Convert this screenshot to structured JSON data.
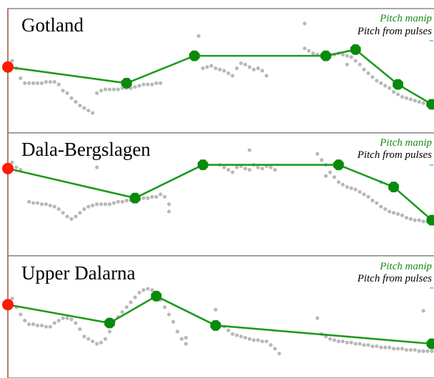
{
  "chart_data": [
    {
      "type": "line",
      "title": "Gotland",
      "legend": [
        "Pitch manip",
        "Pitch from pulses"
      ],
      "legend_placement": "top-right",
      "xlim": [
        0,
        100
      ],
      "ylim": [
        0,
        100
      ],
      "series": [
        {
          "name": "Pitch manip",
          "color": "#1e9a1e",
          "x": [
            0,
            28,
            44,
            75,
            82,
            92,
            100
          ],
          "y": [
            53,
            40,
            62,
            62,
            67,
            39,
            23
          ]
        },
        {
          "name": "Pitch from pulses",
          "color": "#b8b8b8",
          "x": [
            1,
            2,
            3,
            4,
            5,
            6,
            7,
            8,
            9,
            10,
            11,
            12,
            13,
            14,
            15,
            16,
            17,
            18,
            19,
            20,
            21,
            22,
            23,
            24,
            25,
            26,
            27,
            28,
            29,
            30,
            31,
            32,
            33,
            34,
            35,
            36,
            46,
            47,
            48,
            49,
            50,
            51,
            52,
            53,
            54,
            55,
            56,
            57,
            58,
            59,
            60,
            61,
            70,
            71,
            72,
            73,
            74,
            75,
            76,
            77,
            78,
            79,
            80,
            81,
            82,
            83,
            84,
            85,
            86,
            87,
            88,
            89,
            90,
            91,
            92,
            93,
            94,
            95,
            96,
            97,
            98,
            99,
            100,
            45,
            70,
            80
          ],
          "y": [
            58,
            52,
            44,
            40,
            40,
            40,
            40,
            40,
            41,
            41,
            41,
            39,
            34,
            32,
            28,
            25,
            22,
            20,
            18,
            16,
            32,
            34,
            35,
            35,
            35,
            35,
            36,
            36,
            36,
            37,
            38,
            39,
            39,
            39,
            40,
            40,
            52,
            53,
            54,
            52,
            51,
            50,
            48,
            46,
            52,
            56,
            55,
            53,
            51,
            52,
            50,
            46,
            68,
            66,
            64,
            63,
            62,
            61,
            62,
            63,
            64,
            63,
            62,
            61,
            58,
            55,
            51,
            48,
            45,
            42,
            40,
            38,
            36,
            33,
            31,
            29,
            28,
            27,
            26,
            25,
            24,
            23,
            22,
            78,
            88,
            55
          ]
        }
      ]
    },
    {
      "type": "line",
      "title": "Dala-Bergslagen",
      "legend": [
        "Pitch manip",
        "Pitch from pulses"
      ],
      "legend_placement": "top-right",
      "xlim": [
        0,
        100
      ],
      "ylim": [
        0,
        100
      ],
      "series": [
        {
          "name": "Pitch manip",
          "color": "#1e9a1e",
          "x": [
            0,
            30,
            46,
            78,
            91,
            100
          ],
          "y": [
            71,
            47,
            74,
            74,
            56,
            29
          ]
        },
        {
          "name": "Pitch from pulses",
          "color": "#b8b8b8",
          "x": [
            1,
            2,
            3,
            5,
            6,
            7,
            8,
            9,
            10,
            11,
            12,
            13,
            14,
            15,
            16,
            17,
            18,
            19,
            20,
            21,
            22,
            23,
            24,
            25,
            26,
            27,
            28,
            29,
            30,
            31,
            32,
            33,
            34,
            35,
            36,
            37,
            38,
            50,
            51,
            52,
            53,
            54,
            55,
            56,
            57,
            58,
            59,
            60,
            61,
            62,
            63,
            73,
            74,
            75,
            76,
            77,
            78,
            79,
            80,
            81,
            82,
            83,
            84,
            85,
            86,
            87,
            88,
            89,
            90,
            91,
            92,
            93,
            94,
            95,
            96,
            97,
            98,
            99,
            100,
            21,
            38,
            57,
            75,
            88
          ],
          "y": [
            76,
            72,
            70,
            44,
            43,
            43,
            42,
            42,
            41,
            40,
            38,
            35,
            32,
            30,
            32,
            35,
            38,
            40,
            41,
            42,
            42,
            42,
            42,
            43,
            44,
            44,
            45,
            45,
            46,
            46,
            47,
            47,
            48,
            48,
            50,
            48,
            42,
            74,
            72,
            70,
            68,
            72,
            73,
            71,
            70,
            74,
            72,
            71,
            73,
            72,
            70,
            83,
            78,
            74,
            68,
            64,
            60,
            58,
            56,
            55,
            54,
            52,
            50,
            48,
            45,
            43,
            40,
            38,
            36,
            35,
            34,
            33,
            31,
            30,
            29,
            29,
            28,
            28,
            27,
            72,
            36,
            86,
            65,
            60
          ]
        }
      ]
    },
    {
      "type": "line",
      "title": "Upper Dalarna",
      "legend": [
        "Pitch manip",
        "Pitch from pulses"
      ],
      "legend_placement": "top-right",
      "xlim": [
        0,
        100
      ],
      "ylim": [
        0,
        100
      ],
      "series": [
        {
          "name": "Pitch manip",
          "color": "#1e9a1e",
          "x": [
            0,
            24,
            35,
            49,
            100
          ],
          "y": [
            60,
            45,
            67,
            43,
            28
          ]
        },
        {
          "name": "Pitch from pulses",
          "color": "#b8b8b8",
          "x": [
            1,
            2,
            3,
            4,
            5,
            6,
            7,
            8,
            9,
            10,
            11,
            12,
            13,
            14,
            15,
            16,
            17,
            18,
            19,
            20,
            21,
            22,
            23,
            24,
            25,
            26,
            27,
            28,
            29,
            30,
            31,
            32,
            33,
            34,
            35,
            36,
            37,
            38,
            39,
            40,
            41,
            42,
            51,
            52,
            53,
            54,
            55,
            56,
            57,
            58,
            59,
            60,
            61,
            62,
            63,
            64,
            74,
            75,
            76,
            77,
            78,
            79,
            80,
            81,
            82,
            83,
            84,
            85,
            86,
            87,
            88,
            89,
            90,
            91,
            92,
            93,
            94,
            95,
            96,
            97,
            98,
            99,
            100,
            49,
            42,
            73,
            98
          ],
          "y": [
            65,
            58,
            52,
            47,
            44,
            44,
            43,
            43,
            42,
            42,
            45,
            47,
            49,
            49,
            48,
            45,
            40,
            34,
            32,
            30,
            28,
            29,
            32,
            38,
            46,
            50,
            54,
            58,
            62,
            66,
            70,
            72,
            73,
            72,
            70,
            64,
            58,
            52,
            46,
            38,
            32,
            28,
            42,
            39,
            36,
            35,
            34,
            33,
            32,
            31,
            31,
            30,
            30,
            27,
            24,
            20,
            36,
            34,
            32,
            31,
            30,
            30,
            29,
            29,
            28,
            28,
            27,
            27,
            26,
            26,
            25,
            25,
            25,
            24,
            24,
            24,
            23,
            23,
            23,
            22,
            22,
            22,
            22,
            56,
            33,
            49,
            55
          ]
        }
      ]
    }
  ]
}
